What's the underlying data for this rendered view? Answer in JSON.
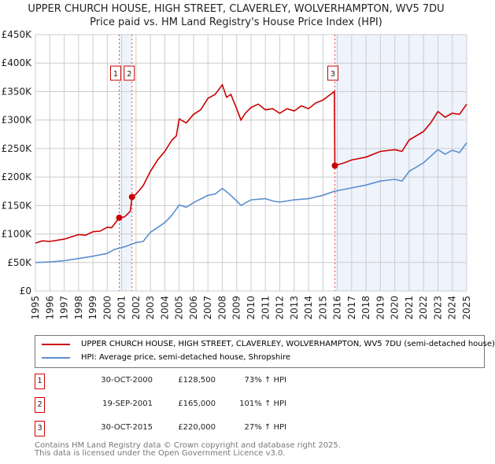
{
  "header": {
    "title": "UPPER CHURCH HOUSE, HIGH STREET, CLAVERLEY, WOLVERHAMPTON, WV5 7DU",
    "subtitle": "Price paid vs. HM Land Registry's House Price Index (HPI)"
  },
  "chart_data": {
    "type": "line",
    "title": "UPPER CHURCH HOUSE, HIGH STREET, CLAVERLEY, WOLVERHAMPTON, WV5 7DU",
    "subtitle": "Price paid vs. HM Land Registry's House Price Index (HPI)",
    "xlim": [
      1995,
      2025.1
    ],
    "ylim": [
      0,
      450000
    ],
    "x_ticks": [
      "1995",
      "1996",
      "1997",
      "1998",
      "1999",
      "2000",
      "2001",
      "2002",
      "2003",
      "2004",
      "2005",
      "2006",
      "2007",
      "2008",
      "2009",
      "2010",
      "2011",
      "2012",
      "2013",
      "2014",
      "2015",
      "2016",
      "2017",
      "2018",
      "2019",
      "2020",
      "2021",
      "2022",
      "2023",
      "2024",
      "2025"
    ],
    "y_ticks": [
      {
        "v": 0,
        "label": "£0"
      },
      {
        "v": 50000,
        "label": "£50K"
      },
      {
        "v": 100000,
        "label": "£100K"
      },
      {
        "v": 150000,
        "label": "£150K"
      },
      {
        "v": 200000,
        "label": "£200K"
      },
      {
        "v": 250000,
        "label": "£250K"
      },
      {
        "v": 300000,
        "label": "£300K"
      },
      {
        "v": 350000,
        "label": "£350K"
      },
      {
        "v": 400000,
        "label": "£400K"
      },
      {
        "v": 450000,
        "label": "£450K"
      }
    ],
    "grid": true,
    "legend_placement": "below",
    "series": [
      {
        "name": "UPPER CHURCH HOUSE, HIGH STREET, CLAVERLEY, WOLVERHAMPTON, WV5 7DU (semi-detached house)",
        "color": "#cc0000",
        "x": [
          1995,
          1995.5,
          1996,
          1997,
          1998,
          1998.5,
          1999,
          1999.5,
          2000,
          2000.3,
          2000.83,
          2001.2,
          2001.6,
          2001.72,
          2002,
          2002.5,
          2003,
          2003.5,
          2004,
          2004.5,
          2004.8,
          2005,
          2005.5,
          2006,
          2006.5,
          2007,
          2007.5,
          2008,
          2008.3,
          2008.6,
          2009,
          2009.3,
          2009.6,
          2010,
          2010.5,
          2011,
          2011.5,
          2012,
          2012.5,
          2013,
          2013.5,
          2014,
          2014.5,
          2015,
          2015.8,
          2015.83,
          2016.5,
          2017,
          2018,
          2019,
          2020,
          2020.5,
          2021,
          2022,
          2022.5,
          2023,
          2023.5,
          2024,
          2024.5,
          2025
        ],
        "y": [
          84000,
          88000,
          87000,
          91000,
          99000,
          98000,
          104000,
          105000,
          112000,
          111000,
          128500,
          130000,
          140000,
          165000,
          170000,
          185000,
          210000,
          230000,
          245000,
          265000,
          272000,
          302000,
          295000,
          310000,
          318000,
          338000,
          345000,
          362000,
          340000,
          345000,
          320000,
          300000,
          312000,
          322000,
          328000,
          318000,
          320000,
          312000,
          320000,
          316000,
          325000,
          320000,
          330000,
          335000,
          350000,
          220000,
          225000,
          230000,
          235000,
          245000,
          248000,
          245000,
          265000,
          280000,
          295000,
          315000,
          305000,
          312000,
          310000,
          328000
        ]
      },
      {
        "name": "HPI: Average price, semi-detached house, Shropshire",
        "color": "#5b8fd0",
        "x": [
          1995,
          1996,
          1997,
          1998,
          1999,
          2000,
          2000.5,
          2001,
          2001.5,
          2002,
          2002.5,
          2003,
          2004,
          2004.5,
          2005,
          2005.5,
          2006,
          2007,
          2007.5,
          2008,
          2008.5,
          2009,
          2009.3,
          2010,
          2011,
          2011.5,
          2012,
          2013,
          2014,
          2015,
          2015.8,
          2016,
          2017,
          2018,
          2019,
          2020,
          2020.5,
          2021,
          2022,
          2023,
          2023.5,
          2024,
          2024.5,
          2025
        ],
        "y": [
          50000,
          51000,
          53000,
          57000,
          61000,
          66000,
          73000,
          76000,
          80000,
          85000,
          87000,
          103000,
          120000,
          133000,
          151000,
          147000,
          155000,
          168000,
          170000,
          180000,
          170000,
          158000,
          150000,
          160000,
          162000,
          158000,
          156000,
          160000,
          162000,
          168000,
          175000,
          176000,
          181000,
          186000,
          193000,
          196000,
          193000,
          210000,
          225000,
          248000,
          240000,
          247000,
          243000,
          260000
        ]
      }
    ],
    "sales": [
      {
        "n": "1",
        "x": 2000.83,
        "y": 128500
      },
      {
        "n": "2",
        "x": 2001.72,
        "y": 165000
      },
      {
        "n": "3",
        "x": 2015.83,
        "y": 220000
      }
    ]
  },
  "legend": {
    "property": "UPPER CHURCH HOUSE, HIGH STREET, CLAVERLEY, WOLVERHAMPTON, WV5 7DU (semi-detached house)",
    "hpi": "HPI: Average price, semi-detached house, Shropshire"
  },
  "transactions": [
    {
      "n": "1",
      "date": "30-OCT-2000",
      "price": "£128,500",
      "hpi": "73% ↑ HPI"
    },
    {
      "n": "2",
      "date": "19-SEP-2001",
      "price": "£165,000",
      "hpi": "101% ↑ HPI"
    },
    {
      "n": "3",
      "date": "30-OCT-2015",
      "price": "£220,000",
      "hpi": "27% ↑ HPI"
    }
  ],
  "footer": {
    "line1": "Contains HM Land Registry data © Crown copyright and database right 2025.",
    "line2": "This data is licensed under the Open Government Licence v3.0."
  }
}
